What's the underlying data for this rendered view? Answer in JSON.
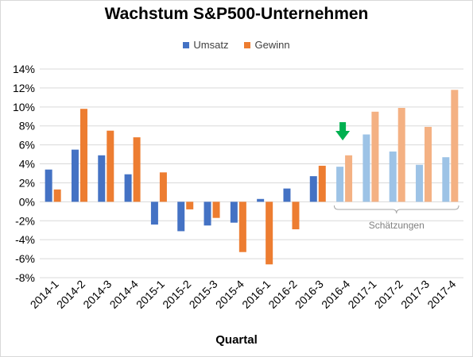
{
  "chart_data": {
    "type": "bar",
    "title": "Wachstum S&P500-Unternehmen",
    "xlabel": "Quartal",
    "ylabel": "",
    "ylim": [
      -8,
      14
    ],
    "yticks": [
      -8,
      -6,
      -4,
      -2,
      0,
      2,
      4,
      6,
      8,
      10,
      12,
      14
    ],
    "ytick_format": "percent",
    "grid": "horizontal",
    "legend_position": "top",
    "categories": [
      "2014-1",
      "2014-2",
      "2014-3",
      "2014-4",
      "2015-1",
      "2015-2",
      "2015-3",
      "2015-4",
      "2016-1",
      "2016-2",
      "2016-3",
      "2016-4",
      "2017-1",
      "2017-2",
      "2017-3",
      "2017-4"
    ],
    "series": [
      {
        "name": "Umsatz",
        "color": "#4472c4",
        "estimate_color": "#9dc3e6",
        "values": [
          3.4,
          5.5,
          4.9,
          2.9,
          -2.4,
          -3.1,
          -2.5,
          -2.2,
          0.3,
          1.4,
          2.7,
          3.7,
          7.1,
          5.3,
          3.9,
          4.7
        ]
      },
      {
        "name": "Gewinn",
        "color": "#ed7d31",
        "estimate_color": "#f4b183",
        "values": [
          1.3,
          9.8,
          7.5,
          6.8,
          3.1,
          -0.8,
          -1.7,
          -5.3,
          -6.6,
          -2.9,
          3.8,
          4.9,
          9.5,
          9.9,
          7.9,
          11.8
        ]
      }
    ],
    "estimate_start_index": 11,
    "annotations": {
      "bracket_label": "Schätzungen",
      "arrow_color": "#00b050",
      "arrow_category_index": 11
    }
  }
}
